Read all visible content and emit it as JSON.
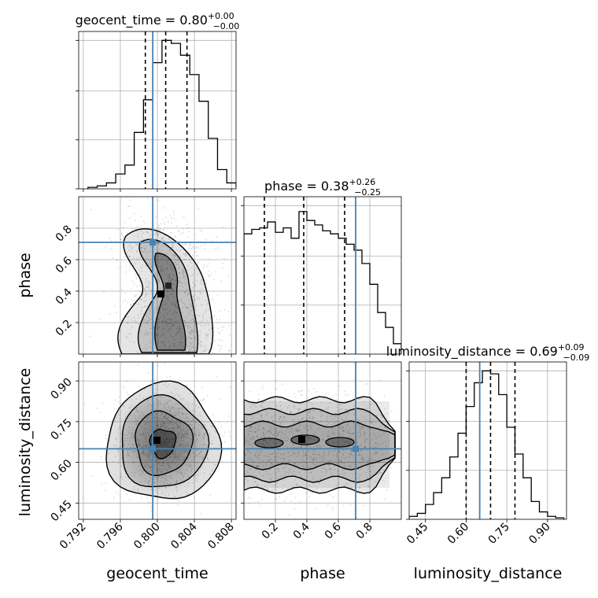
{
  "chart_data": {
    "type": "corner",
    "parameters": [
      "geocent_time",
      "phase",
      "luminosity_distance"
    ],
    "truths": [
      0.7995,
      0.71,
      0.65
    ],
    "truth_color": "#4682b4",
    "panels": [
      {
        "kind": "hist1d",
        "param": "geocent_time",
        "title_name": "geocent_time",
        "title_median": "0.80",
        "title_plus": "+0.00",
        "title_minus": "−0.00",
        "xlim": [
          0.7915,
          0.8085
        ],
        "bins": [
          0.7925,
          0.7935,
          0.7945,
          0.7955,
          0.7965,
          0.7975,
          0.7985,
          0.7995,
          0.8005,
          0.8015,
          0.8025,
          0.8035,
          0.8045,
          0.8055,
          0.8065,
          0.8075,
          0.8085
        ],
        "counts": [
          0.01,
          0.02,
          0.04,
          0.1,
          0.16,
          0.38,
          0.6,
          0.85,
          1.0,
          0.98,
          0.9,
          0.77,
          0.59,
          0.34,
          0.13,
          0.04,
          0.01
        ],
        "quantiles": [
          0.7987,
          0.8009,
          0.8032
        ]
      },
      {
        "kind": "hist1d",
        "param": "phase",
        "title_name": "phase",
        "title_median": "0.38",
        "title_plus": "+0.26",
        "title_minus": "−0.25",
        "xlim": [
          0.0,
          1.0
        ],
        "bins": [
          0.0,
          0.05,
          0.1,
          0.15,
          0.2,
          0.25,
          0.3,
          0.35,
          0.4,
          0.45,
          0.5,
          0.55,
          0.6,
          0.65,
          0.7,
          0.75,
          0.8,
          0.85,
          0.9,
          0.95,
          1.0
        ],
        "counts": [
          0.81,
          0.84,
          0.85,
          0.89,
          0.82,
          0.85,
          0.78,
          0.96,
          0.9,
          0.87,
          0.83,
          0.81,
          0.78,
          0.74,
          0.7,
          0.61,
          0.47,
          0.28,
          0.18,
          0.07
        ],
        "quantiles": [
          0.13,
          0.38,
          0.64
        ]
      },
      {
        "kind": "hist1d",
        "param": "luminosity_distance",
        "title_name": "luminosity_distance",
        "title_median": "0.69",
        "title_plus": "+0.09",
        "title_minus": "−0.09",
        "xlim": [
          0.39,
          0.97
        ],
        "bins": [
          0.39,
          0.42,
          0.45,
          0.48,
          0.51,
          0.54,
          0.57,
          0.6,
          0.63,
          0.66,
          0.69,
          0.72,
          0.75,
          0.78,
          0.81,
          0.84,
          0.87,
          0.9,
          0.93,
          0.96
        ],
        "counts": [
          0.02,
          0.04,
          0.1,
          0.18,
          0.28,
          0.42,
          0.58,
          0.76,
          0.92,
          1.0,
          0.98,
          0.84,
          0.62,
          0.44,
          0.28,
          0.12,
          0.05,
          0.02,
          0.01
        ],
        "quantiles": [
          0.6,
          0.69,
          0.78
        ]
      },
      {
        "kind": "scatter2d",
        "x": "geocent_time",
        "y": "phase",
        "xlim": [
          0.7915,
          0.8085
        ],
        "ylim": [
          0.0,
          1.0
        ]
      },
      {
        "kind": "scatter2d",
        "x": "geocent_time",
        "y": "luminosity_distance",
        "xlim": [
          0.7915,
          0.8085
        ],
        "ylim": [
          0.39,
          0.97
        ]
      },
      {
        "kind": "scatter2d",
        "x": "phase",
        "y": "luminosity_distance",
        "xlim": [
          0.0,
          1.0
        ],
        "ylim": [
          0.39,
          0.97
        ]
      }
    ],
    "axes": {
      "geocent_time": {
        "label": "geocent_time",
        "ticks": [
          0.792,
          0.796,
          0.8,
          0.804,
          0.808
        ],
        "tick_labels": [
          "0.792",
          "0.796",
          "0.800",
          "0.804",
          "0.808"
        ]
      },
      "phase": {
        "label": "phase",
        "ticks": [
          0.2,
          0.4,
          0.6,
          0.8
        ],
        "tick_labels": [
          "0.2",
          "0.4",
          "0.6",
          "0.8"
        ]
      },
      "luminosity_distance": {
        "label": "luminosity_distance",
        "ticks": [
          0.45,
          0.6,
          0.75,
          0.9
        ],
        "tick_labels": [
          "0.45",
          "0.60",
          "0.75",
          "0.90"
        ]
      }
    },
    "grid": true
  }
}
